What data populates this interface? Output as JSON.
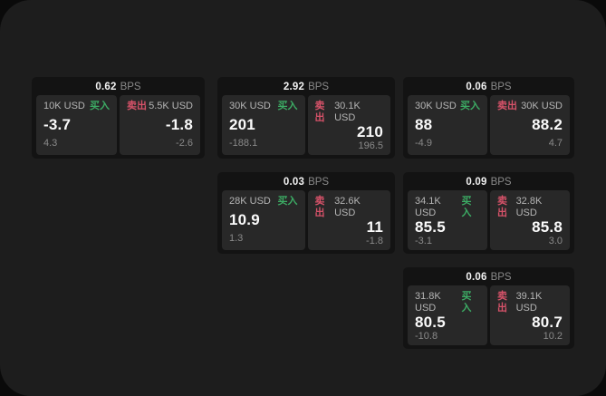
{
  "labels": {
    "buy": "买入",
    "sell": "卖出",
    "bps": "BPS"
  },
  "colors": {
    "buy_green": "#3cab64",
    "sell_red": "#d65269",
    "panel_bg": "#1d1d1d",
    "card_bg": "#131313",
    "subpanel_bg": "#282828"
  },
  "cards": [
    {
      "bps_value": "0.62",
      "buy_amount": "10K USD",
      "buy_value": "-3.7",
      "buy_sub": "4.3",
      "sell_amount": "5.5K USD",
      "sell_value": "-1.8",
      "sell_sub": "-2.6"
    },
    {
      "bps_value": "2.92",
      "buy_amount": "30K USD",
      "buy_value": "201",
      "buy_sub": "-188.1",
      "sell_amount": "30.1K USD",
      "sell_value": "210",
      "sell_sub": "196.5"
    },
    {
      "bps_value": "0.06",
      "buy_amount": "30K USD",
      "buy_value": "88",
      "buy_sub": "-4.9",
      "sell_amount": "30K USD",
      "sell_value": "88.2",
      "sell_sub": "4.7"
    },
    {
      "bps_value": "0.03",
      "buy_amount": "28K USD",
      "buy_value": "10.9",
      "buy_sub": "1.3",
      "sell_amount": "32.6K USD",
      "sell_value": "11",
      "sell_sub": "-1.8"
    },
    {
      "bps_value": "0.09",
      "buy_amount": "34.1K USD",
      "buy_value": "85.5",
      "buy_sub": "-3.1",
      "sell_amount": "32.8K USD",
      "sell_value": "85.8",
      "sell_sub": "3.0"
    },
    {
      "bps_value": "0.06",
      "buy_amount": "31.8K USD",
      "buy_value": "80.5",
      "buy_sub": "-10.8",
      "sell_amount": "39.1K USD",
      "sell_value": "80.7",
      "sell_sub": "10.2"
    }
  ]
}
